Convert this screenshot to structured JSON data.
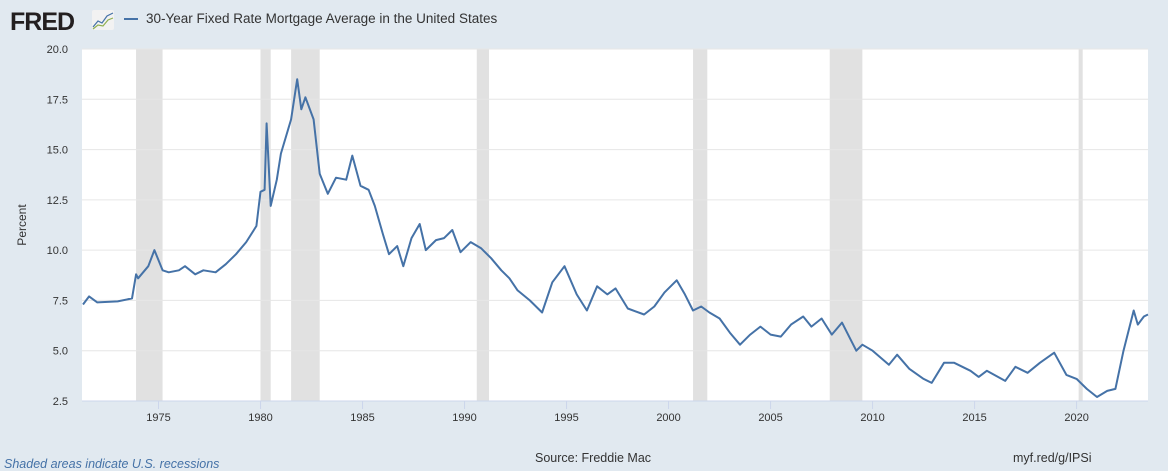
{
  "header": {
    "logo": "FRED",
    "legend_label": "30-Year Fixed Rate Mortgage Average in the United States"
  },
  "footer": {
    "note": "Shaded areas indicate U.S. recessions",
    "source": "Source: Freddie Mac",
    "url": "myf.red/g/IPSi"
  },
  "colors": {
    "line": "#4572a7",
    "recession": "#e1e1e1",
    "background": "#e1e9f0"
  },
  "chart_data": {
    "type": "line",
    "title": "",
    "ylabel": "Percent",
    "xlabel": "",
    "ylim": [
      2.5,
      20.0
    ],
    "xlim": [
      1971.25,
      2023.5
    ],
    "yticks": [
      "2.5",
      "5.0",
      "7.5",
      "10.0",
      "12.5",
      "15.0",
      "17.5",
      "20.0"
    ],
    "xticks": [
      "1975",
      "1980",
      "1985",
      "1990",
      "1995",
      "2000",
      "2005",
      "2010",
      "2015",
      "2020"
    ],
    "grid": "horizontal",
    "recessions": [
      [
        1973.9,
        1975.2
      ],
      [
        1980.0,
        1980.5
      ],
      [
        1981.5,
        1982.9
      ],
      [
        1990.6,
        1991.2
      ],
      [
        2001.2,
        2001.9
      ],
      [
        2007.9,
        2009.5
      ],
      [
        2020.1,
        2020.3
      ]
    ],
    "series": [
      {
        "name": "30-Year Fixed Rate Mortgage Average in the United States",
        "x": [
          1971.3,
          1971.6,
          1972,
          1973,
          1973.7,
          1973.9,
          1974.0,
          1974.5,
          1974.8,
          1975.2,
          1975.5,
          1976,
          1976.3,
          1976.8,
          1977.2,
          1977.8,
          1978.3,
          1978.8,
          1979.3,
          1979.8,
          1980.0,
          1980.2,
          1980.3,
          1980.5,
          1980.8,
          1981,
          1981.5,
          1981.8,
          1982,
          1982.2,
          1982.6,
          1982.9,
          1983.3,
          1983.7,
          1984.2,
          1984.5,
          1984.9,
          1985.3,
          1985.6,
          1986.0,
          1986.3,
          1986.7,
          1987.0,
          1987.4,
          1987.8,
          1988.1,
          1988.6,
          1989.0,
          1989.4,
          1989.8,
          1990.3,
          1990.8,
          1991.3,
          1991.8,
          1992.2,
          1992.6,
          1993.2,
          1993.8,
          1994.3,
          1994.9,
          1995.5,
          1996,
          1996.5,
          1997,
          1997.4,
          1998,
          1998.8,
          1999.3,
          1999.8,
          2000.4,
          2000.8,
          2001.2,
          2001.6,
          2002,
          2002.5,
          2003,
          2003.5,
          2004,
          2004.5,
          2005,
          2005.5,
          2006,
          2006.6,
          2007,
          2007.5,
          2008,
          2008.5,
          2008.9,
          2009.2,
          2009.5,
          2010,
          2010.8,
          2011.2,
          2011.8,
          2012.5,
          2012.9,
          2013.5,
          2014,
          2014.8,
          2015.2,
          2015.6,
          2016.5,
          2017,
          2017.6,
          2018.2,
          2018.9,
          2019.5,
          2020,
          2020.5,
          2021,
          2021.5,
          2021.9,
          2022.3,
          2022.8,
          2023,
          2023.3,
          2023.5
        ],
        "values": [
          7.3,
          7.7,
          7.4,
          7.45,
          7.6,
          8.8,
          8.6,
          9.2,
          10.0,
          9.0,
          8.9,
          9.0,
          9.2,
          8.8,
          9.0,
          8.9,
          9.3,
          9.8,
          10.4,
          11.2,
          12.9,
          13.0,
          16.3,
          12.2,
          13.5,
          14.8,
          16.5,
          18.5,
          17.0,
          17.6,
          16.5,
          13.8,
          12.8,
          13.6,
          13.5,
          14.7,
          13.2,
          13.0,
          12.2,
          10.8,
          9.8,
          10.2,
          9.2,
          10.6,
          11.3,
          10.0,
          10.5,
          10.6,
          11.0,
          9.9,
          10.4,
          10.1,
          9.6,
          9.0,
          8.6,
          8.0,
          7.5,
          6.9,
          8.4,
          9.2,
          7.8,
          7.0,
          8.2,
          7.8,
          8.1,
          7.1,
          6.8,
          7.2,
          7.9,
          8.5,
          7.8,
          7.0,
          7.2,
          6.9,
          6.6,
          5.9,
          5.3,
          5.8,
          6.2,
          5.8,
          5.7,
          6.3,
          6.7,
          6.2,
          6.6,
          5.8,
          6.4,
          5.6,
          5.0,
          5.3,
          5.0,
          4.3,
          4.8,
          4.1,
          3.6,
          3.4,
          4.4,
          4.4,
          4.0,
          3.7,
          4.0,
          3.5,
          4.2,
          3.9,
          4.4,
          4.9,
          3.8,
          3.6,
          3.1,
          2.7,
          3.0,
          3.1,
          5.0,
          7.0,
          6.3,
          6.7,
          6.8
        ]
      }
    ]
  }
}
